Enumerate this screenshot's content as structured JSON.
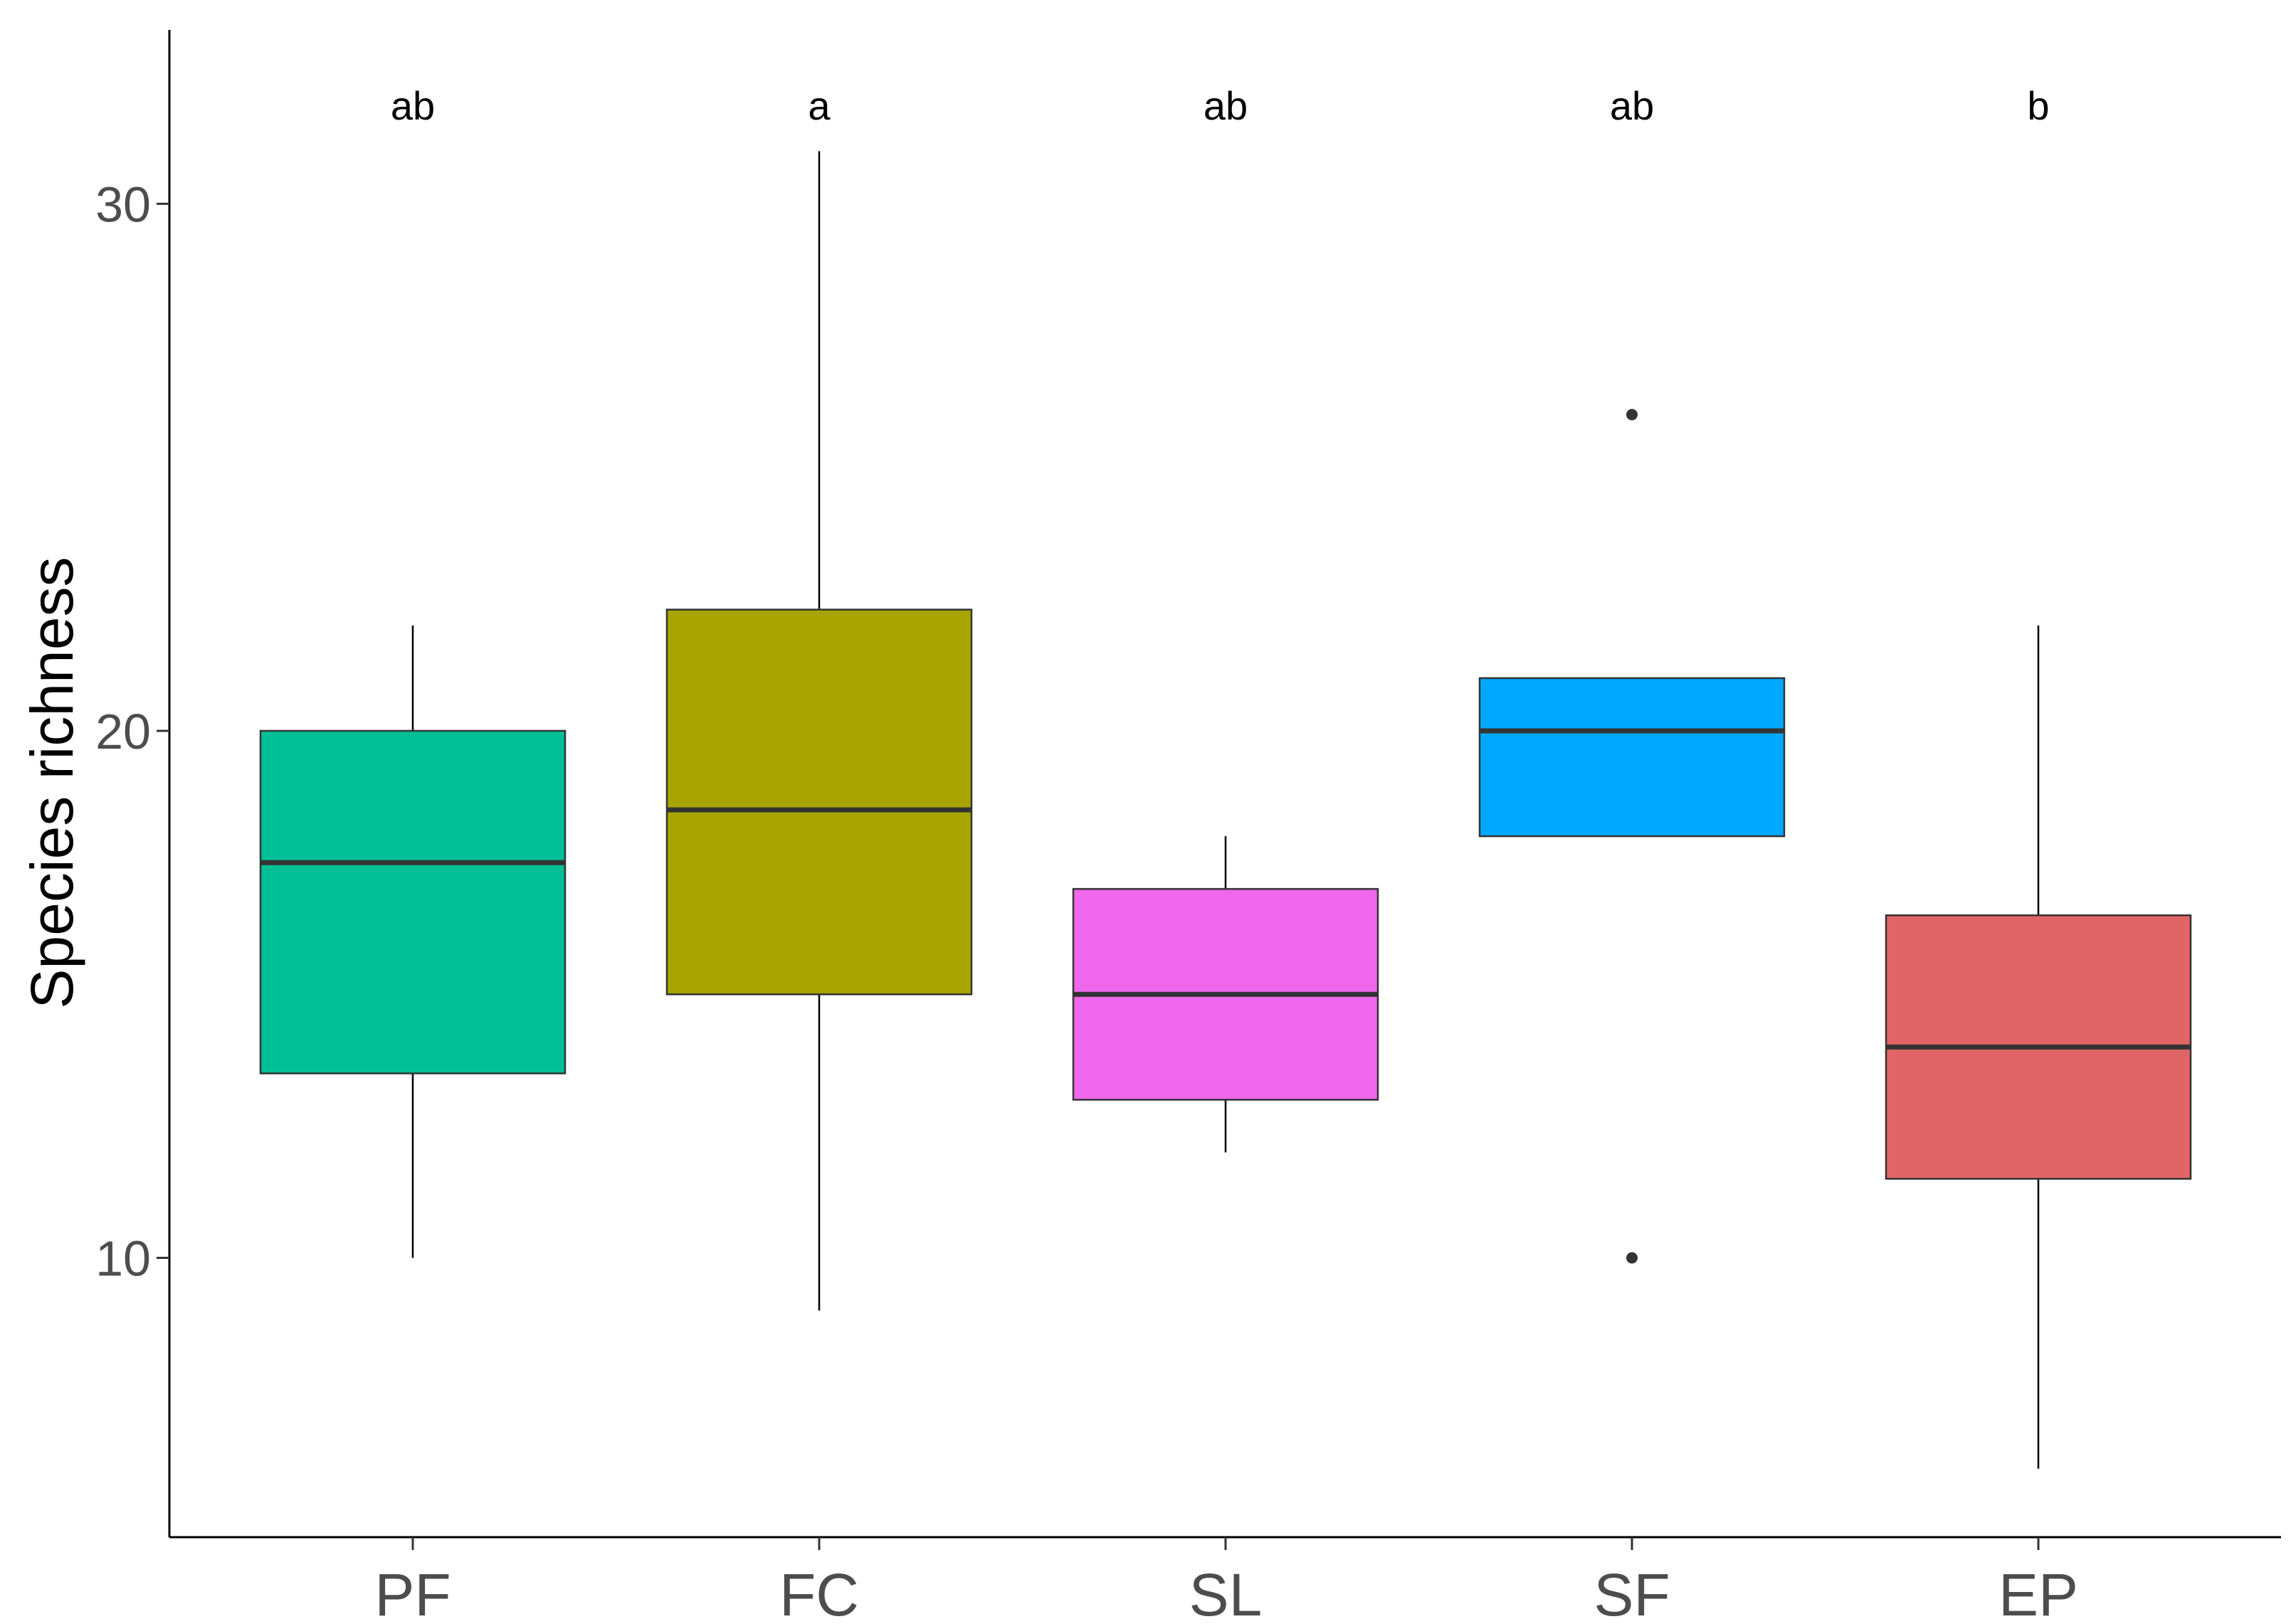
{
  "chart_data": {
    "type": "box",
    "ylabel": "Species richness",
    "xlabel": "",
    "ylim": [
      4.7,
      33.3
    ],
    "yticks": [
      10,
      20,
      30
    ],
    "grid": false,
    "legend": "none",
    "categories": [
      "PF",
      "FC",
      "SL",
      "SF",
      "EP"
    ],
    "groups": [
      {
        "name": "PF",
        "min": 10,
        "q1": 13.5,
        "median": 17.5,
        "q3": 20,
        "max": 22,
        "outliers": [],
        "color": "#00BF96",
        "letter": "ab"
      },
      {
        "name": "FC",
        "min": 9,
        "q1": 15,
        "median": 18.5,
        "q3": 22.3,
        "max": 31,
        "outliers": [],
        "color": "#A9A400",
        "letter": "a"
      },
      {
        "name": "SL",
        "min": 12,
        "q1": 13,
        "median": 15,
        "q3": 17,
        "max": 18,
        "outliers": [],
        "color": "#EF67EB",
        "letter": "ab"
      },
      {
        "name": "SF",
        "min": 18,
        "q1": 18,
        "median": 20,
        "q3": 21,
        "max": 21,
        "outliers": [
          26,
          10
        ],
        "color": "#00A9FF",
        "letter": "ab"
      },
      {
        "name": "EP",
        "min": 6,
        "q1": 11.5,
        "median": 14,
        "q3": 16.5,
        "max": 22,
        "outliers": [],
        "color": "#E16566",
        "letter": "b"
      }
    ]
  }
}
